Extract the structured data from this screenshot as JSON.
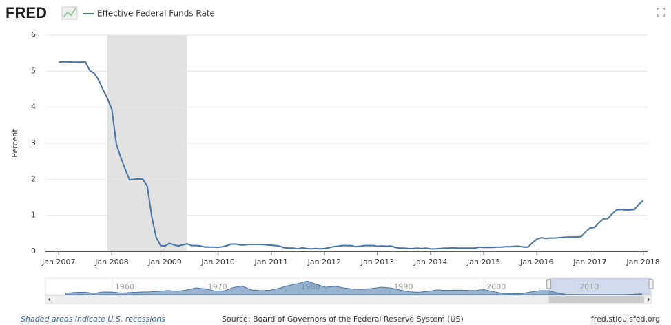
{
  "logo": "FRED",
  "chart_data": {
    "type": "line",
    "y_label": "Percent",
    "x": [
      "2007-01",
      "2007-02",
      "2007-03",
      "2007-04",
      "2007-05",
      "2007-06",
      "2007-07",
      "2007-08",
      "2007-09",
      "2007-10",
      "2007-11",
      "2007-12",
      "2008-01",
      "2008-02",
      "2008-03",
      "2008-04",
      "2008-05",
      "2008-06",
      "2008-07",
      "2008-08",
      "2008-09",
      "2008-10",
      "2008-11",
      "2008-12",
      "2009-01",
      "2009-02",
      "2009-03",
      "2009-04",
      "2009-05",
      "2009-06",
      "2009-07",
      "2009-08",
      "2009-09",
      "2009-10",
      "2009-11",
      "2009-12",
      "2010-01",
      "2010-02",
      "2010-03",
      "2010-04",
      "2010-05",
      "2010-06",
      "2010-07",
      "2010-08",
      "2010-09",
      "2010-10",
      "2010-11",
      "2010-12",
      "2011-01",
      "2011-02",
      "2011-03",
      "2011-04",
      "2011-05",
      "2011-06",
      "2011-07",
      "2011-08",
      "2011-09",
      "2011-10",
      "2011-11",
      "2011-12",
      "2012-01",
      "2012-02",
      "2012-03",
      "2012-04",
      "2012-05",
      "2012-06",
      "2012-07",
      "2012-08",
      "2012-09",
      "2012-10",
      "2012-11",
      "2012-12",
      "2013-01",
      "2013-02",
      "2013-03",
      "2013-04",
      "2013-05",
      "2013-06",
      "2013-07",
      "2013-08",
      "2013-09",
      "2013-10",
      "2013-11",
      "2013-12",
      "2014-01",
      "2014-02",
      "2014-03",
      "2014-04",
      "2014-05",
      "2014-06",
      "2014-07",
      "2014-08",
      "2014-09",
      "2014-10",
      "2014-11",
      "2014-12",
      "2015-01",
      "2015-02",
      "2015-03",
      "2015-04",
      "2015-05",
      "2015-06",
      "2015-07",
      "2015-08",
      "2015-09",
      "2015-10",
      "2015-11",
      "2015-12",
      "2016-01",
      "2016-02",
      "2016-03",
      "2016-04",
      "2016-05",
      "2016-06",
      "2016-07",
      "2016-08",
      "2016-09",
      "2016-10",
      "2016-11",
      "2016-12",
      "2017-01",
      "2017-02",
      "2017-03",
      "2017-04",
      "2017-05",
      "2017-06",
      "2017-07",
      "2017-08",
      "2017-09",
      "2017-10",
      "2017-11",
      "2017-12",
      "2018-01"
    ],
    "series": [
      {
        "name": "Effective Federal Funds Rate",
        "color": "#4572a7",
        "values": [
          5.25,
          5.26,
          5.26,
          5.25,
          5.25,
          5.25,
          5.26,
          5.02,
          4.94,
          4.76,
          4.49,
          4.24,
          3.94,
          2.98,
          2.61,
          2.28,
          1.98,
          2.0,
          2.01,
          2.0,
          1.81,
          0.97,
          0.39,
          0.16,
          0.15,
          0.22,
          0.18,
          0.15,
          0.18,
          0.21,
          0.16,
          0.16,
          0.15,
          0.12,
          0.12,
          0.12,
          0.11,
          0.13,
          0.16,
          0.2,
          0.2,
          0.18,
          0.18,
          0.19,
          0.19,
          0.19,
          0.19,
          0.18,
          0.17,
          0.16,
          0.14,
          0.1,
          0.09,
          0.09,
          0.07,
          0.1,
          0.08,
          0.07,
          0.08,
          0.07,
          0.08,
          0.1,
          0.13,
          0.14,
          0.16,
          0.16,
          0.16,
          0.13,
          0.14,
          0.16,
          0.16,
          0.16,
          0.14,
          0.15,
          0.14,
          0.15,
          0.11,
          0.09,
          0.09,
          0.08,
          0.08,
          0.09,
          0.08,
          0.09,
          0.07,
          0.07,
          0.08,
          0.09,
          0.09,
          0.1,
          0.09,
          0.09,
          0.09,
          0.09,
          0.09,
          0.12,
          0.11,
          0.11,
          0.11,
          0.12,
          0.12,
          0.13,
          0.13,
          0.14,
          0.14,
          0.12,
          0.12,
          0.24,
          0.34,
          0.38,
          0.36,
          0.37,
          0.37,
          0.38,
          0.39,
          0.4,
          0.4,
          0.4,
          0.41,
          0.54,
          0.65,
          0.66,
          0.79,
          0.9,
          0.91,
          1.04,
          1.15,
          1.16,
          1.15,
          1.15,
          1.16,
          1.3,
          1.41
        ]
      }
    ],
    "xlim": [
      "2006-10",
      "2018-02"
    ],
    "xticks": [
      {
        "value": "2007-01",
        "label": "Jan 2007"
      },
      {
        "value": "2008-01",
        "label": "Jan 2008"
      },
      {
        "value": "2009-01",
        "label": "Jan 2009"
      },
      {
        "value": "2010-01",
        "label": "Jan 2010"
      },
      {
        "value": "2011-01",
        "label": "Jan 2011"
      },
      {
        "value": "2012-01",
        "label": "Jan 2012"
      },
      {
        "value": "2013-01",
        "label": "Jan 2013"
      },
      {
        "value": "2014-01",
        "label": "Jan 2014"
      },
      {
        "value": "2015-01",
        "label": "Jan 2015"
      },
      {
        "value": "2016-01",
        "label": "Jan 2016"
      },
      {
        "value": "2017-01",
        "label": "Jan 2017"
      },
      {
        "value": "2018-01",
        "label": "Jan 2018"
      }
    ],
    "ylim": [
      0,
      6
    ],
    "yticks": [
      0,
      1,
      2,
      3,
      4,
      5,
      6
    ],
    "grid": true,
    "recessions": [
      {
        "start": "2007-12",
        "end": "2009-06",
        "color": "#e1e1e1"
      }
    ],
    "navigator": {
      "x": [
        1955,
        1956,
        1957,
        1958,
        1959,
        1960,
        1961,
        1962,
        1963,
        1964,
        1965,
        1966,
        1967,
        1968,
        1969,
        1970,
        1971,
        1972,
        1973,
        1974,
        1975,
        1976,
        1977,
        1978,
        1979,
        1980,
        1981,
        1982,
        1983,
        1984,
        1985,
        1986,
        1987,
        1988,
        1989,
        1990,
        1991,
        1992,
        1993,
        1994,
        1995,
        1996,
        1997,
        1998,
        1999,
        2000,
        2001,
        2002,
        2003,
        2004,
        2005,
        2006,
        2007,
        2008,
        2009,
        2010,
        2011,
        2012,
        2013,
        2014,
        2015,
        2016,
        2017
      ],
      "values": [
        1.8,
        2.7,
        3.1,
        1.6,
        3.3,
        3.2,
        1.96,
        2.7,
        3.2,
        3.5,
        4.1,
        5.1,
        4.2,
        5.7,
        8.2,
        7.2,
        4.7,
        4.4,
        8.7,
        10.5,
        5.8,
        5.0,
        5.5,
        7.9,
        11.2,
        13.4,
        16.4,
        12.3,
        9.1,
        10.2,
        8.1,
        6.8,
        6.7,
        7.6,
        9.2,
        8.1,
        5.7,
        3.5,
        3.0,
        4.2,
        5.8,
        5.3,
        5.5,
        5.4,
        5.0,
        6.2,
        3.9,
        1.7,
        1.1,
        1.35,
        3.2,
        5.0,
        5.0,
        1.9,
        0.16,
        0.18,
        0.1,
        0.14,
        0.11,
        0.09,
        0.13,
        0.4,
        1.0
      ],
      "xlim": [
        1954,
        2018
      ],
      "ylim": [
        0,
        20
      ],
      "xticks": [
        1960,
        1970,
        1980,
        1990,
        2000,
        2010
      ],
      "selection": [
        2007,
        2018
      ]
    }
  },
  "footer": {
    "recession_note": "Shaded areas indicate U.S. recessions",
    "source": "Source: Board of Governors of the Federal Reserve System (US)",
    "site": "fred.stlouisfed.org"
  }
}
